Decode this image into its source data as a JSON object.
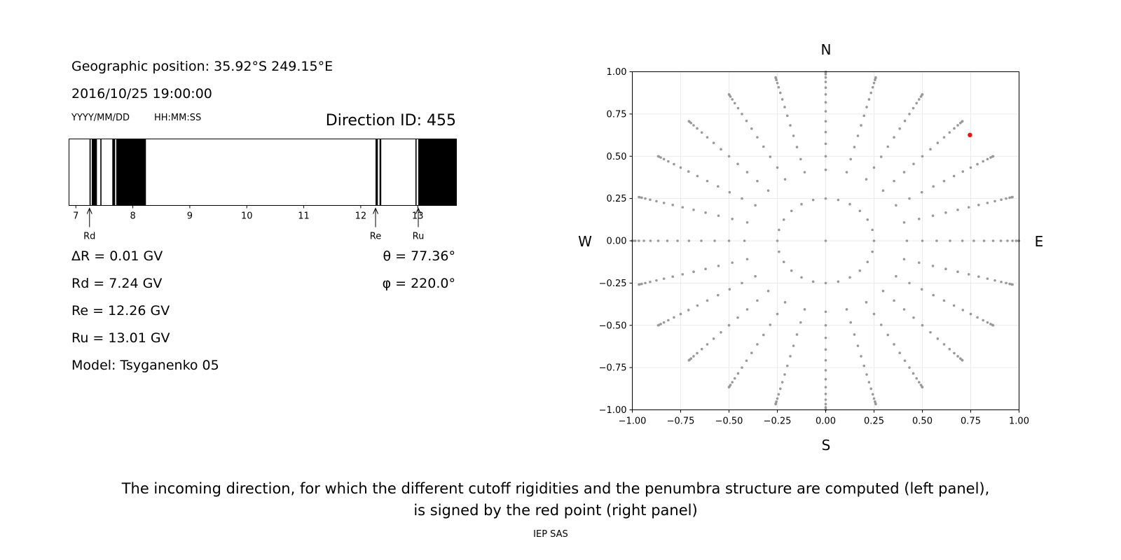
{
  "left_panel": {
    "geo_position": "Geographic position: 35.92°S 249.15°E",
    "datetime": "2016/10/25 19:00:00",
    "date_format_label": "YYYY/MM/DD",
    "time_format_label": "HH:MM:SS",
    "direction_id": "Direction ID: 455",
    "delta_r": "ΔR = 0.01 GV",
    "rd": "Rd = 7.24 GV",
    "re": "Re = 12.26 GV",
    "ru": "Ru = 13.01 GV",
    "model": "Model: Tsyganenko 05",
    "theta": "θ = 77.36°",
    "phi": "φ = 220.0°"
  },
  "compass": {
    "north": "N",
    "south": "S",
    "west": "W",
    "east": "E"
  },
  "caption": {
    "line1": "The incoming direction, for which the different cutoff rigidities and the penumbra structure are computed (left panel),",
    "line2": "is signed by the red point (right panel)"
  },
  "footer": "IEP SAS",
  "chart_data": [
    {
      "type": "penumbra-bar",
      "xlim": [
        6.88,
        13.68
      ],
      "xticks": [
        7,
        8,
        9,
        10,
        11,
        12,
        13
      ],
      "tick_labels": [
        "7",
        "8",
        "9",
        "10",
        "11",
        "12",
        "13"
      ],
      "forbidden_bands": [
        [
          7.24,
          7.26
        ],
        [
          7.28,
          7.37
        ],
        [
          7.43,
          7.45
        ],
        [
          7.64,
          7.69
        ],
        [
          7.71,
          8.23
        ],
        [
          12.26,
          12.3
        ],
        [
          12.33,
          12.36
        ],
        [
          12.96,
          12.98
        ],
        [
          13.01,
          13.68
        ]
      ],
      "markers": [
        {
          "label": "Rd",
          "value": 7.24
        },
        {
          "label": "Re",
          "value": 12.26
        },
        {
          "label": "Ru",
          "value": 13.01
        }
      ],
      "bar_color": "#000000"
    },
    {
      "type": "scatter",
      "xlim": [
        -1.0,
        1.0
      ],
      "ylim": [
        -1.0,
        1.0
      ],
      "xticks": [
        -1.0,
        -0.75,
        -0.5,
        -0.25,
        0.0,
        0.25,
        0.5,
        0.75,
        1.0
      ],
      "yticks": [
        -1.0,
        -0.75,
        -0.5,
        -0.25,
        0.0,
        0.25,
        0.5,
        0.75,
        1.0
      ],
      "xtick_labels": [
        "−1.00",
        "−0.75",
        "−0.50",
        "−0.25",
        "0.00",
        "0.25",
        "0.50",
        "0.75",
        "1.00"
      ],
      "ytick_labels": [
        "−1.00",
        "−0.75",
        "−0.50",
        "−0.25",
        "0.00",
        "0.25",
        "0.50",
        "0.75",
        "1.00"
      ],
      "grid": true,
      "series": [
        {
          "color": "#999999",
          "rings": [
            0.0,
            0.25,
            0.42,
            0.5,
            0.574,
            0.643,
            0.707,
            0.766,
            0.819,
            0.866,
            0.906,
            0.94,
            0.966,
            0.985,
            0.996,
            1.0
          ],
          "points_per_ring": [
            1,
            24,
            24,
            24,
            24,
            24,
            24,
            24,
            24,
            24,
            24,
            24,
            24,
            24,
            24,
            24
          ]
        },
        {
          "color": "#ee1111",
          "points": [
            {
              "x": 0.746,
              "y": 0.626
            }
          ]
        }
      ]
    }
  ]
}
